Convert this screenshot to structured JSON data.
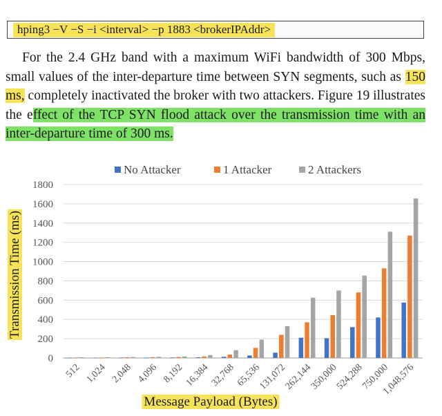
{
  "command": {
    "text": "hping3 −V −S −i <interval> −p 1883 <brokerIPAddr>"
  },
  "paragraph": {
    "seg1": "For the 2.4 GHz band with a maximum WiFi bandwidth of 300 Mbps, small values of the inter-departure time between SYN segments, such as ",
    "hl1": "150 ms,",
    "seg2": " completely inactivated the broker with two attackers. Figure 19 illustrates the e",
    "hl2": "ffect of the TCP SYN flood attack over the transmission time with an inter-departure time of 300 ms."
  },
  "chart_data": {
    "type": "bar",
    "title": "",
    "xlabel": "Message Payload (Bytes)",
    "ylabel": "Transmission Time (ms)",
    "ylim": [
      0,
      1800
    ],
    "yticks": [
      0,
      200,
      400,
      600,
      800,
      1000,
      1200,
      1400,
      1600,
      1800
    ],
    "grid": true,
    "legend_position": "top",
    "categories": [
      "512",
      "1,024",
      "2,048",
      "4,096",
      "8,192",
      "16,384",
      "32,768",
      "65,536",
      "131,072",
      "262,144",
      "350,000",
      "524,288",
      "750,000",
      "1,048,576"
    ],
    "series": [
      {
        "name": "No Attacker",
        "color": "#4472c4",
        "values": [
          3,
          3,
          4,
          4,
          5,
          7,
          12,
          25,
          55,
          210,
          205,
          320,
          420,
          575
        ]
      },
      {
        "name": "1 Attacker",
        "color": "#ed7d31",
        "values": [
          5,
          5,
          7,
          8,
          10,
          15,
          35,
          105,
          240,
          370,
          445,
          680,
          930,
          1270
        ]
      },
      {
        "name": "2 Attackers",
        "color": "#a5a5a5",
        "values": [
          7,
          8,
          10,
          12,
          15,
          30,
          80,
          190,
          330,
          625,
          700,
          855,
          1310,
          1655
        ]
      }
    ]
  }
}
